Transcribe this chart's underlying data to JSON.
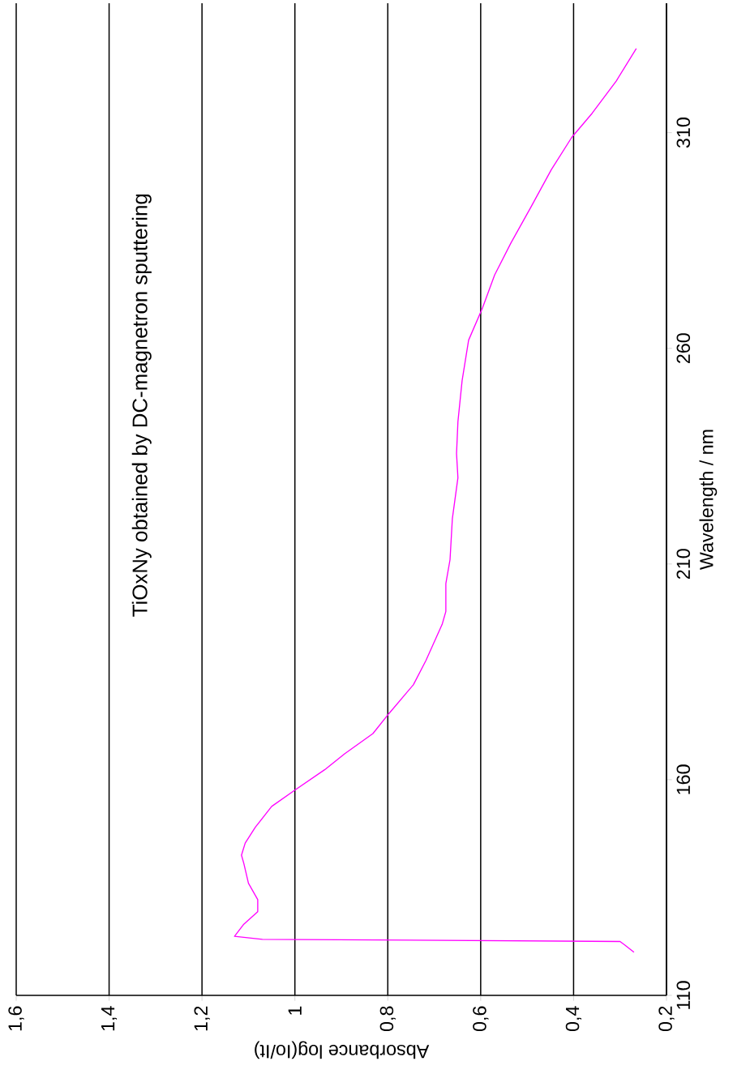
{
  "chart_data": {
    "type": "line",
    "xlabel": "Absorbance log(Io/It)",
    "ylabel": "Wavelength / nm",
    "annotations": [
      "TiOxNy obtained by DC-magnetron sputtering"
    ],
    "xlim": [
      1.6,
      0.2
    ],
    "xticks": [
      {
        "value": 1.6,
        "label": "1,6"
      },
      {
        "value": 1.4,
        "label": "1,4"
      },
      {
        "value": 1.2,
        "label": "1,2"
      },
      {
        "value": 1,
        "label": "1"
      },
      {
        "value": 0.8,
        "label": "0,8"
      },
      {
        "value": 0.6,
        "label": "0,6"
      },
      {
        "value": 0.4,
        "label": "0,4"
      },
      {
        "value": 0.2,
        "label": "0,2"
      }
    ],
    "ylim": [
      110,
      340
    ],
    "yticks": [
      {
        "value": 110,
        "label": "110"
      },
      {
        "value": 160,
        "label": "160"
      },
      {
        "value": 210,
        "label": "210"
      },
      {
        "value": 260,
        "label": "260"
      },
      {
        "value": 310,
        "label": "310"
      }
    ],
    "grid": "x",
    "marker": "none",
    "line_style": "solid",
    "series": [
      {
        "color": "#ff00ff",
        "x": [
          0.27,
          0.29,
          0.3,
          1.07,
          1.13,
          1.11,
          1.08,
          1.08,
          1.1,
          1.11,
          1.115,
          1.107,
          1.085,
          1.05,
          1.0,
          0.936,
          0.893,
          0.832,
          0.797,
          0.745,
          0.718,
          0.683,
          0.675,
          0.675,
          0.666,
          0.661,
          0.649,
          0.652,
          0.649,
          0.64,
          0.626,
          0.596,
          0.57,
          0.535,
          0.491,
          0.448,
          0.404,
          0.36,
          0.308,
          0.265
        ],
        "values": [
          120,
          121.7,
          122.5,
          123,
          123.7,
          126.5,
          129.4,
          132.2,
          136,
          140.6,
          142.5,
          145.3,
          149,
          153.8,
          157.6,
          162.3,
          166,
          170.7,
          175.4,
          182,
          187.6,
          196,
          199,
          205.5,
          211,
          220.5,
          230,
          235.6,
          243,
          252.5,
          261.9,
          269.4,
          277,
          284.4,
          292.9,
          301.4,
          308.9,
          314.5,
          322,
          329.5
        ]
      }
    ]
  }
}
